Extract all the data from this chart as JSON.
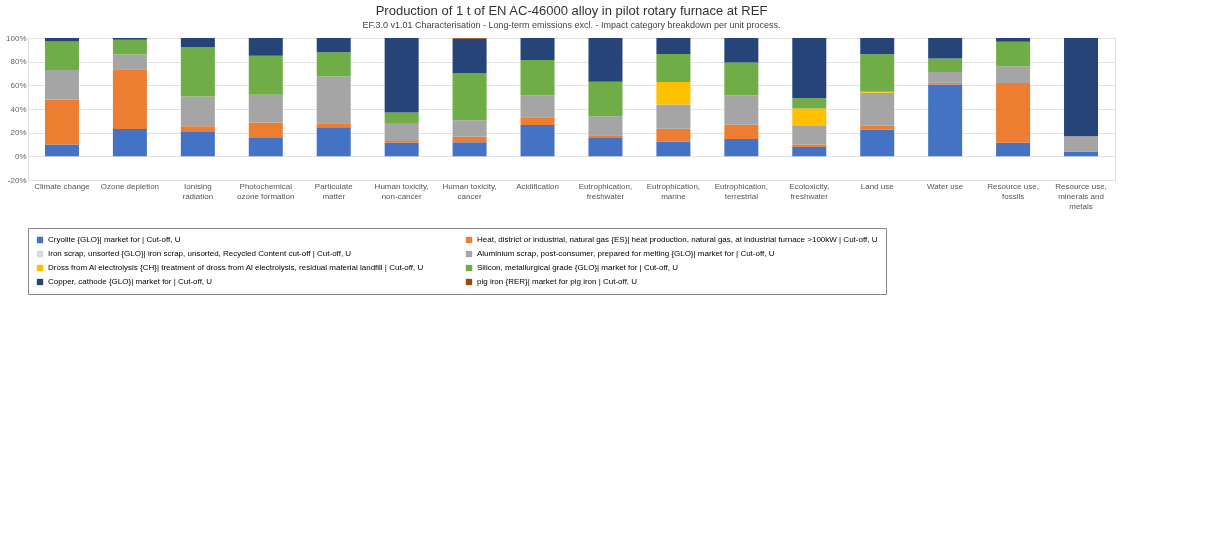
{
  "chart_data": {
    "type": "bar",
    "stacked": true,
    "title": "Production of 1 t of EN AC-46000 alloy in pilot rotary furnace at REF",
    "subtitle": "EF.3.0 v1.01 Characterisation - Long-term emissions excl. - Impact category breakdown per unit process.",
    "categories": [
      "Climate change",
      "Ozone depletion",
      "Ionising radiation",
      "Photochemical ozone formation",
      "Particulate matter",
      "Human toxicity, non-cancer",
      "Human toxicity, cancer",
      "Acidification",
      "Eutrophication, freshwater",
      "Eutrophication, marine",
      "Eutrophication, terrestrial",
      "Ecotoxicity, freshwater",
      "Land use",
      "Water use",
      "Resource use, fossils",
      "Resource use, minerals and metals"
    ],
    "series": [
      {
        "name": "Cryolite {GLO}| market for | Cut-off, U",
        "color": "#4472c4",
        "values": [
          10,
          23,
          20.5,
          15.5,
          24.5,
          11.5,
          12,
          26.5,
          15.5,
          12.6,
          14.7,
          7.8,
          22.4,
          60.8,
          11.5,
          4
        ]
      },
      {
        "name": "Heat, district or industrial, natural gas {ES}| heat production, natural gas, at industrial furnace >100kW | Cut-off, U",
        "color": "#ed7d31",
        "values": [
          38,
          50.5,
          5,
          13,
          3.5,
          1.5,
          4.5,
          6.5,
          2.3,
          10.7,
          11.9,
          1.9,
          3.4,
          1.4,
          50.4,
          0
        ]
      },
      {
        "name": "Iron scrap, unsorted {GLO}| iron scrap, unsorted, Recycled Content cut-off | Cut-off, U",
        "color": "#d9d9d9",
        "values": [
          0,
          0,
          0,
          0,
          0,
          0,
          0,
          0,
          0,
          0,
          0,
          0,
          0,
          0,
          0,
          0
        ]
      },
      {
        "name": "Aluminium scrap, post-consumer, prepared for melting {GLO}| market for | Cut-off, U",
        "color": "#a5a5a5",
        "values": [
          25,
          12.5,
          25,
          23.5,
          39.5,
          14.5,
          14,
          18.5,
          16,
          20.6,
          25,
          16,
          27.9,
          9.1,
          14.1,
          13
        ]
      },
      {
        "name": "Dross from Al electrolysis {CH}| treatment of dross from Al electrolysis, residual material landfill | Cut-off, U",
        "color": "#ffc000",
        "values": [
          0,
          0,
          0,
          0,
          0,
          0,
          0,
          0,
          0,
          18.9,
          0,
          14.7,
          0.8,
          0,
          0,
          0
        ]
      },
      {
        "name": "Silicon, metallurgical grade {GLO}| market for | Cut-off, U",
        "color": "#70ad47",
        "values": [
          24,
          12.5,
          42,
          33,
          20.5,
          9.5,
          40,
          30,
          29.2,
          23.6,
          27.8,
          8.7,
          31.7,
          11.3,
          20.9,
          0
        ]
      },
      {
        "name": "Copper, cathode {GLO}| market for | Cut-off, U",
        "color": "#264478",
        "values": [
          3,
          1.5,
          7.5,
          15,
          12,
          63,
          28.8,
          18.5,
          37,
          13.6,
          20.6,
          50.9,
          13.8,
          17.4,
          3.1,
          83
        ]
      },
      {
        "name": "pig iron {RER}| market for pig iron | Cut-off, U",
        "color": "#9e480e",
        "values": [
          0,
          0,
          0,
          0,
          0,
          0,
          0.7,
          0,
          0,
          0,
          0,
          0,
          0,
          0,
          0,
          0
        ]
      }
    ],
    "ylim": [
      -20,
      100
    ],
    "yticks": [
      {
        "value": -20,
        "label": "-20%"
      },
      {
        "value": 0,
        "label": "0%"
      },
      {
        "value": 20,
        "label": "20%"
      },
      {
        "value": 40,
        "label": "40%"
      },
      {
        "value": 60,
        "label": "60%"
      },
      {
        "value": 80,
        "label": "80%"
      },
      {
        "value": 100,
        "label": "100%"
      }
    ],
    "grid": "y",
    "legend": "bottom"
  }
}
